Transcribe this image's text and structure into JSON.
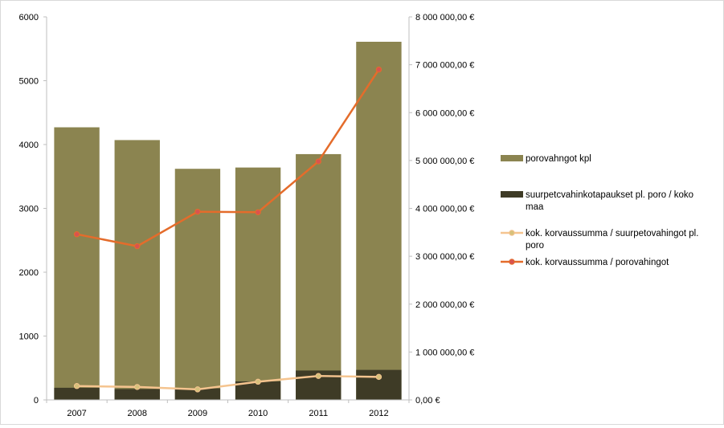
{
  "chart_data": {
    "type": "bar",
    "categories": [
      "2007",
      "2008",
      "2009",
      "2010",
      "2011",
      "2012"
    ],
    "series": [
      {
        "name": "porovahngot kpl",
        "type": "bar",
        "axis": "left",
        "color": "#8b8450",
        "values": [
          4270,
          4070,
          3620,
          3640,
          3850,
          5610
        ]
      },
      {
        "name": "suurpetcvahinkotapaukset pl. poro / koko maa",
        "type": "bar",
        "axis": "left",
        "color": "#3e3b26",
        "values": [
          190,
          170,
          180,
          290,
          460,
          470
        ]
      },
      {
        "name": "kok. korvaussumma / suurpetovahingot pl. poro",
        "type": "line",
        "axis": "right",
        "color": "#f5c48f",
        "marker_color": "#d7c17a",
        "values": [
          290000,
          270000,
          220000,
          380000,
          500000,
          480000
        ]
      },
      {
        "name": "kok. korvaussumma / porovahingot",
        "type": "line",
        "axis": "right",
        "color": "#e46c2b",
        "marker_color": "#d9534f",
        "values": [
          3460000,
          3210000,
          3930000,
          3920000,
          4980000,
          6900000
        ]
      }
    ],
    "left_axis": {
      "ylim": [
        0,
        6000
      ],
      "ticks": [
        "0",
        "1000",
        "2000",
        "3000",
        "4000",
        "5000",
        "6000"
      ]
    },
    "right_axis": {
      "ylim": [
        0,
        8000000
      ],
      "ticks": [
        "0,00 €",
        "1 000 000,00 €",
        "2 000 000,00 €",
        "3 000 000,00 €",
        "4 000 000,00 €",
        "5 000 000,00 €",
        "6 000 000,00 €",
        "7 000 000,00 €",
        "8 000 000,00 €"
      ]
    },
    "legend": {
      "position": "right",
      "entries": [
        {
          "lines": [
            "porovahngot kpl"
          ],
          "kind": "bar",
          "color": "#8b8450"
        },
        {
          "lines": [
            "suurpetcvahinkotapaukset pl. poro / koko",
            "maa"
          ],
          "kind": "bar",
          "color": "#3e3b26"
        },
        {
          "lines": [
            "kok. korvaussumma / suurpetovahingot pl.",
            "poro"
          ],
          "kind": "line",
          "color": "#f5c48f",
          "marker_color": "#d7c17a"
        },
        {
          "lines": [
            "kok. korvaussumma / porovahingot"
          ],
          "kind": "line",
          "color": "#e46c2b",
          "marker_color": "#d9534f"
        }
      ]
    },
    "grid": false
  }
}
